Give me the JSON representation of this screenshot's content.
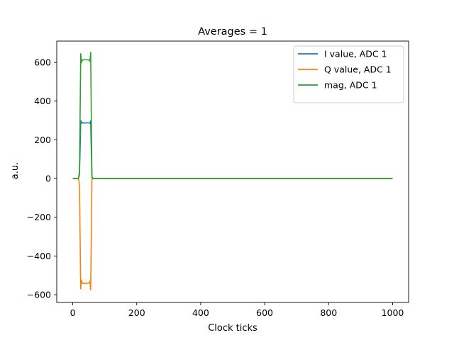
{
  "chart_data": {
    "type": "line",
    "title": "Averages = 1",
    "xlabel": "Clock ticks",
    "ylabel": "a.u.",
    "xlim": [
      -50,
      1050
    ],
    "ylim": [
      -640,
      710
    ],
    "xticks": [
      0,
      200,
      400,
      600,
      800,
      1000
    ],
    "yticks": [
      -600,
      -400,
      -200,
      0,
      200,
      400,
      600
    ],
    "xtick_labels": [
      "0",
      "200",
      "400",
      "600",
      "800",
      "1000"
    ],
    "ytick_labels": [
      "−600",
      "−400",
      "−200",
      "0",
      "200",
      "400",
      "600"
    ],
    "grid": false,
    "legend_position": "top-right",
    "series": [
      {
        "name": "I value, ADC 1",
        "color": "#1f77b4",
        "x": [
          0,
          18,
          21,
          23,
          25,
          27,
          30,
          35,
          45,
          52,
          54,
          56,
          58,
          60,
          64,
          100,
          200,
          300,
          400,
          500,
          600,
          700,
          800,
          900,
          1000
        ],
        "y": [
          0,
          0,
          20,
          150,
          300,
          285,
          290,
          286,
          288,
          287,
          285,
          298,
          150,
          5,
          0,
          0,
          0,
          0,
          0,
          0,
          0,
          0,
          0,
          0,
          0
        ]
      },
      {
        "name": "Q value, ADC 1",
        "color": "#ff7f0e",
        "x": [
          0,
          18,
          21,
          23,
          25,
          27,
          30,
          35,
          45,
          52,
          54,
          56,
          58,
          60,
          64,
          100,
          200,
          300,
          400,
          500,
          600,
          700,
          800,
          900,
          1000
        ],
        "y": [
          0,
          0,
          -30,
          -300,
          -570,
          -525,
          -540,
          -542,
          -541,
          -540,
          -530,
          -575,
          -300,
          -5,
          0,
          0,
          0,
          0,
          0,
          0,
          0,
          0,
          0,
          0,
          0
        ]
      },
      {
        "name": "mag, ADC 1",
        "color": "#2ca02c",
        "x": [
          0,
          18,
          21,
          23,
          25,
          27,
          30,
          35,
          45,
          52,
          54,
          56,
          58,
          60,
          64,
          100,
          200,
          300,
          400,
          500,
          600,
          700,
          800,
          900,
          1000
        ],
        "y": [
          0,
          0,
          35,
          330,
          645,
          598,
          612,
          614,
          613,
          612,
          605,
          652,
          330,
          8,
          0,
          0,
          0,
          0,
          0,
          0,
          0,
          0,
          0,
          0,
          0
        ]
      }
    ]
  }
}
